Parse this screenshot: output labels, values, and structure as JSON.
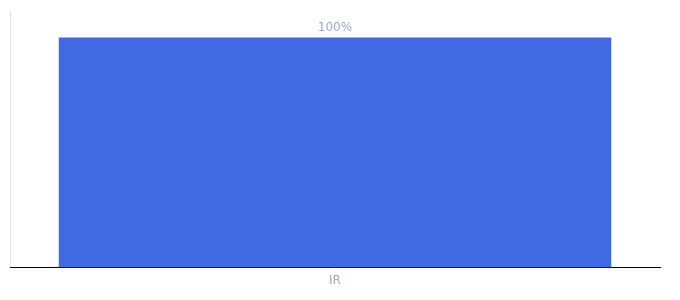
{
  "chart_data": {
    "type": "bar",
    "categories": [
      "IR"
    ],
    "values": [
      100
    ],
    "value_labels": [
      "100%"
    ],
    "data_labels": true,
    "color": "#4169e1",
    "ylim": [
      0,
      112
    ],
    "grid": false,
    "tick_labels": "x"
  }
}
